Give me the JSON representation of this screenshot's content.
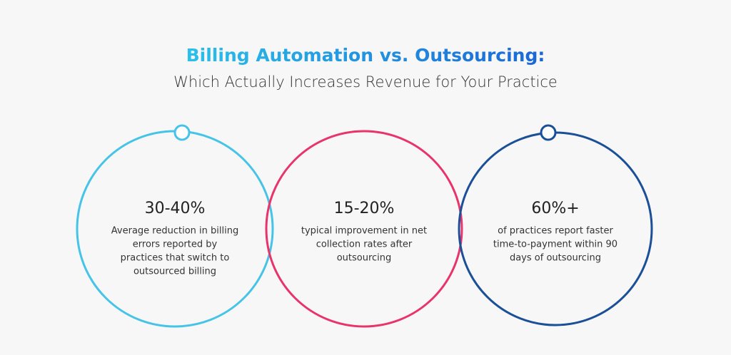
{
  "header": {
    "title": "Billing Automation vs. Outsourcing:",
    "subtitle": "Which Actually Increases Revenue for Your Practice"
  },
  "stats": [
    {
      "value": "30-40%",
      "description": [
        "Average reduction in billing",
        "errors reported by",
        "practices that switch to",
        "outsourced billing"
      ]
    },
    {
      "value": "15-20%",
      "description": [
        "typical improvement in net",
        "collection rates after",
        "outsourcing"
      ]
    },
    {
      "value": "60%+",
      "description": [
        "of practices report faster",
        "time-to-payment within 90",
        "days of outsourcing"
      ]
    }
  ]
}
